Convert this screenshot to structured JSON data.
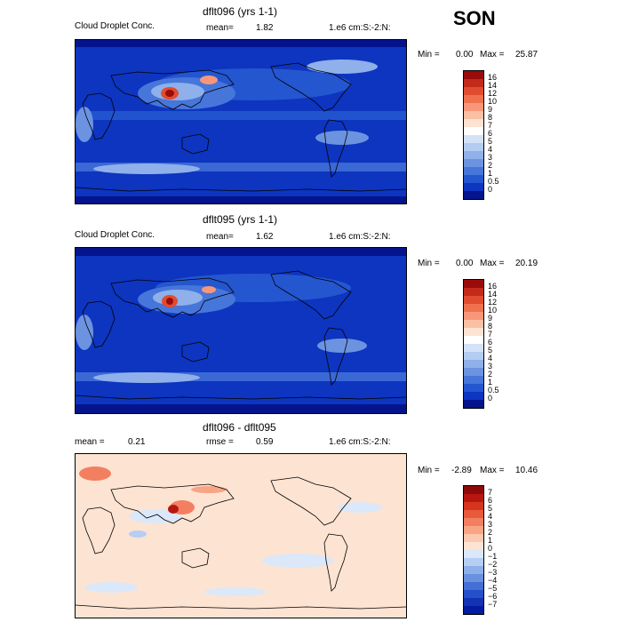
{
  "season": "SON",
  "panels": [
    {
      "title": "dflt096 (yrs 1-1)",
      "left_label": "Cloud Droplet Conc.",
      "mean_label": "mean=",
      "mean_value": "1.82",
      "units": "1.e6 cm:S:-2:N:",
      "min_label": "Min =",
      "min_value": "0.00",
      "max_label": "Max =",
      "max_value": "25.87",
      "colorbar_labels": [
        "16",
        "14",
        "12",
        "10",
        "9",
        "8",
        "7",
        "6",
        "5",
        "4",
        "3",
        "2",
        "1",
        "0.5",
        "0"
      ],
      "colors": [
        "#9a0b0b",
        "#c42a1a",
        "#e04c2e",
        "#f0714e",
        "#f7977a",
        "#fbbfa4",
        "#fde3d2",
        "#ffffff",
        "#d3e2f7",
        "#b3ccf2",
        "#8fb0ea",
        "#6c93e0",
        "#4676da",
        "#2456d0",
        "#0d35c0",
        "#03148c"
      ]
    },
    {
      "title": "dflt095 (yrs 1-1)",
      "left_label": "Cloud Droplet Conc.",
      "mean_label": "mean=",
      "mean_value": "1.62",
      "units": "1.e6 cm:S:-2:N:",
      "min_label": "Min =",
      "min_value": "0.00",
      "max_label": "Max =",
      "max_value": "20.19",
      "colorbar_labels": [
        "16",
        "14",
        "12",
        "10",
        "9",
        "8",
        "7",
        "6",
        "5",
        "4",
        "3",
        "2",
        "1",
        "0.5",
        "0"
      ],
      "colors": [
        "#9a0b0b",
        "#c42a1a",
        "#e04c2e",
        "#f0714e",
        "#f7977a",
        "#fbbfa4",
        "#fde3d2",
        "#ffffff",
        "#d3e2f7",
        "#b3ccf2",
        "#8fb0ea",
        "#6c93e0",
        "#4676da",
        "#2456d0",
        "#0d35c0",
        "#03148c"
      ]
    },
    {
      "title": "dflt096 - dflt095",
      "mean_label": "mean =",
      "mean_value": "0.21",
      "rmse_label": "rmse =",
      "rmse_value": "0.59",
      "units": "1.e6 cm:S:-2:N:",
      "min_label": "Min =",
      "min_value": "-2.89",
      "max_label": "Max =",
      "max_value": "10.46",
      "colorbar_labels": [
        "7",
        "6",
        "5",
        "4",
        "3",
        "2",
        "1",
        "0",
        "−1",
        "−2",
        "−3",
        "−4",
        "−5",
        "−6",
        "−7"
      ],
      "colors": [
        "#8c0a0a",
        "#b8170f",
        "#d6341f",
        "#e85a3c",
        "#f28060",
        "#f8a586",
        "#fcc8ae",
        "#fde3d2",
        "#dbe8f9",
        "#b6cef3",
        "#8eb0ea",
        "#6a90e0",
        "#4470d6",
        "#2550c9",
        "#1332b5",
        "#041aa0"
      ]
    }
  ]
}
